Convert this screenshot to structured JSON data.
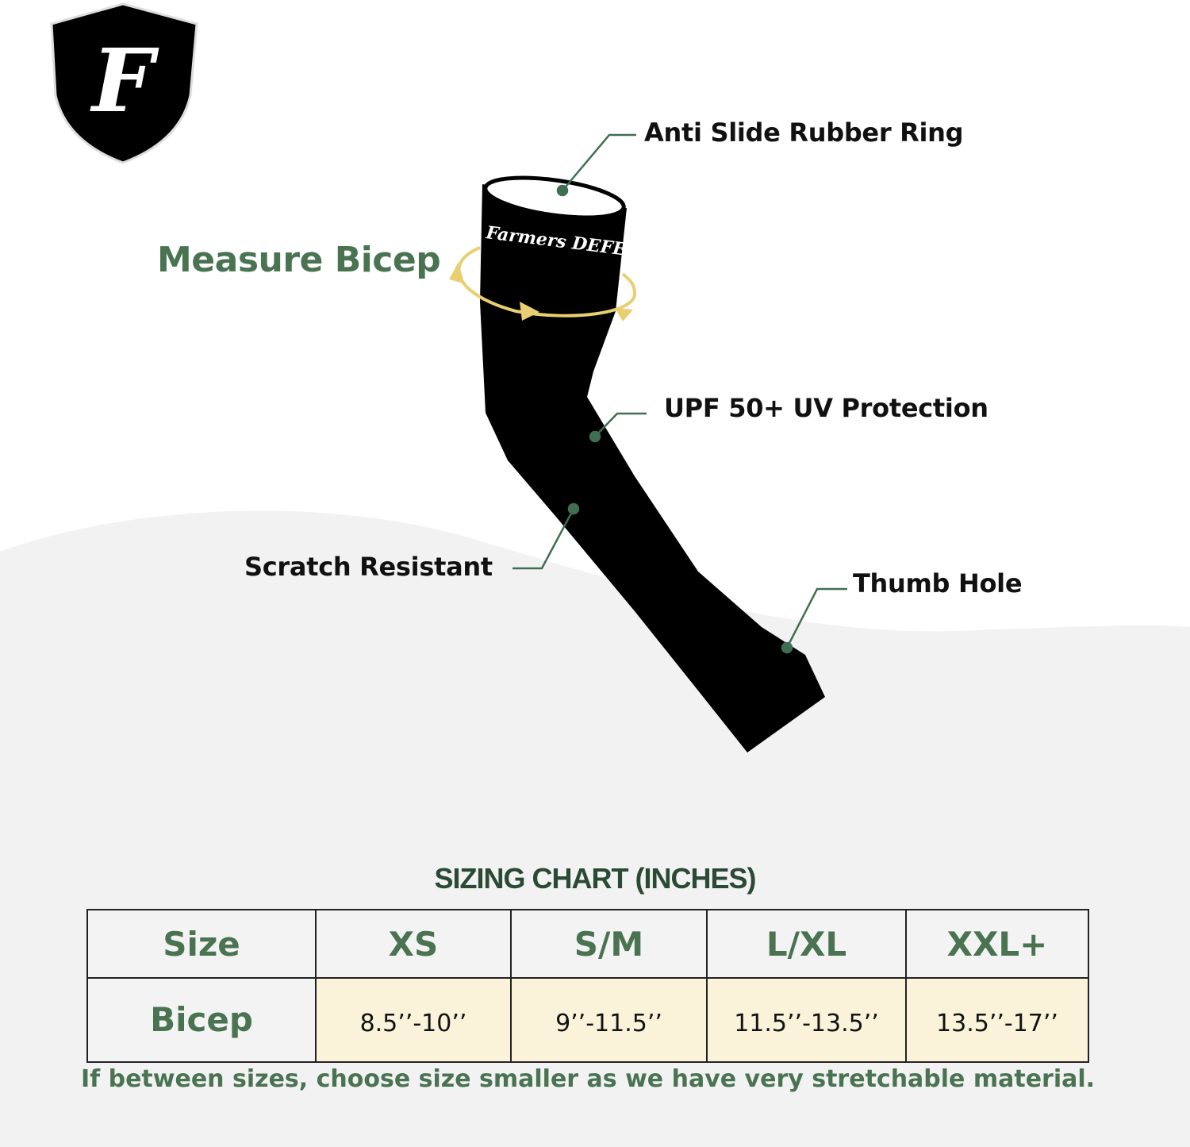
{
  "brand": {
    "logo_letter": "F",
    "sleeve_print": "Farmers DEFENSE"
  },
  "colors": {
    "accent_green": "#4a7352",
    "title_green": "#2b4a35",
    "cell_yellow": "#faf3d9",
    "arrow_gold": "#e8cf72",
    "background_wave": "#f2f2f2"
  },
  "callouts": {
    "measure": "Measure Bicep",
    "ring": "Anti Slide Rubber Ring",
    "upf": "UPF 50+ UV Protection",
    "scratch": "Scratch Resistant",
    "thumb": "Thumb Hole"
  },
  "sizing": {
    "title": "SIZING CHART (INCHES)",
    "header": [
      "Size",
      "XS",
      "S/M",
      "L/XL",
      "XXL+"
    ],
    "row_label": "Bicep",
    "values": [
      "8.5’’-10’’",
      "9’’-11.5’’",
      "11.5’’-13.5’’",
      "13.5’’-17’’"
    ],
    "note": "If between sizes, choose size smaller as we have very stretchable material."
  }
}
